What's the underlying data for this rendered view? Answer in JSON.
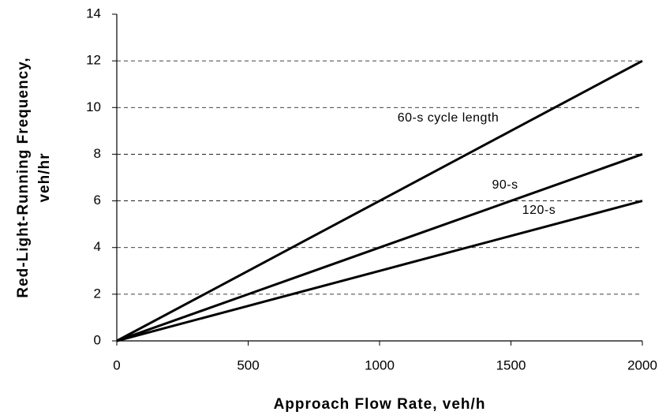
{
  "chart_data": {
    "type": "line",
    "xlabel": "Approach Flow Rate, veh/h",
    "ylabel": [
      "Red-Light-Running Frequency,",
      "veh/hr"
    ],
    "x": [
      0,
      500,
      1000,
      1500,
      2000
    ],
    "series": [
      {
        "name": "60-s cycle length",
        "color": "#000000",
        "values": [
          0,
          3,
          6,
          9,
          12
        ]
      },
      {
        "name": "90-s",
        "color": "#000000",
        "values": [
          0,
          2,
          4,
          6,
          8
        ]
      },
      {
        "name": "120-s",
        "color": "#000000",
        "values": [
          0,
          1.5,
          3,
          4.5,
          6
        ]
      }
    ],
    "xlim": [
      0,
      2000
    ],
    "xticks": [
      0,
      500,
      1000,
      1500,
      2000
    ],
    "ylim": [
      0,
      14
    ],
    "yticks": [
      0,
      2,
      4,
      6,
      8,
      10,
      12,
      14
    ],
    "grid": true
  }
}
